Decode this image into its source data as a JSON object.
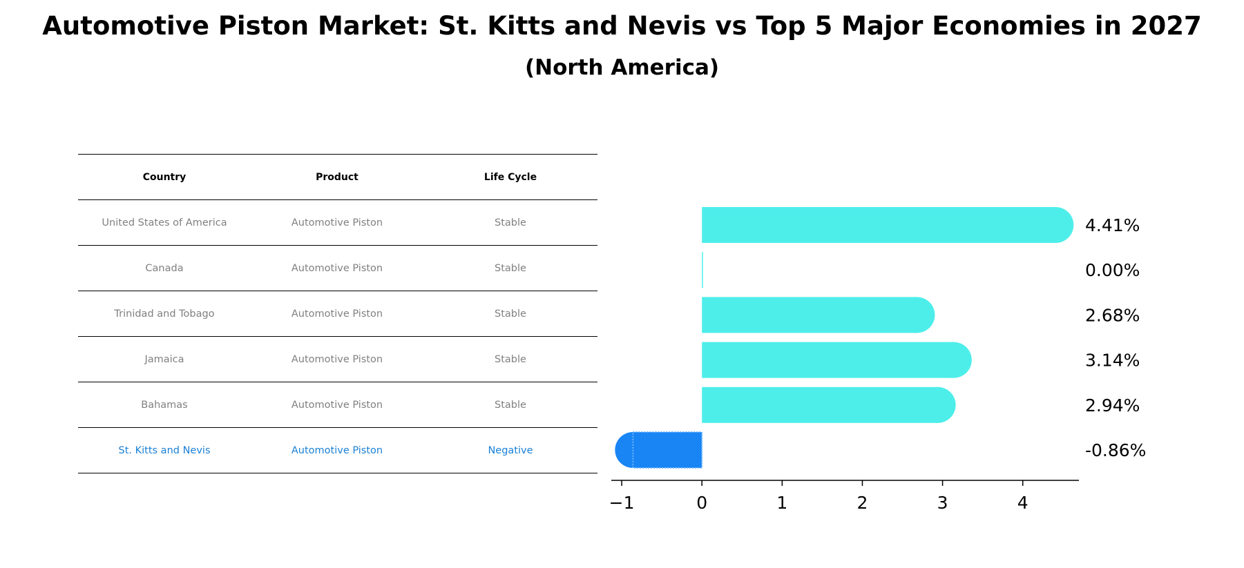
{
  "title": "Automotive Piston Market: St. Kitts and Nevis vs Top 5 Major Economies in 2027",
  "subtitle": "(North America)",
  "table": {
    "headers": [
      "Country",
      "Product",
      "Life Cycle"
    ],
    "rows": [
      {
        "country": "United States of America",
        "product": "Automotive Piston",
        "life_cycle": "Stable"
      },
      {
        "country": "Canada",
        "product": "Automotive Piston",
        "life_cycle": "Stable"
      },
      {
        "country": "Trinidad and Tobago",
        "product": "Automotive Piston",
        "life_cycle": "Stable"
      },
      {
        "country": "Jamaica",
        "product": "Automotive Piston",
        "life_cycle": "Stable"
      },
      {
        "country": "Bahamas",
        "product": "Automotive Piston",
        "life_cycle": "Stable"
      },
      {
        "country": "St. Kitts and Nevis",
        "product": "Automotive Piston",
        "life_cycle": "Negative"
      }
    ],
    "highlight_color": "#1a80d5",
    "text_color": "#808080"
  },
  "chart_data": {
    "type": "bar",
    "orientation": "horizontal",
    "categories": [
      "United States of America",
      "Canada",
      "Trinidad and Tobago",
      "Jamaica",
      "Bahamas",
      "St. Kitts and Nevis"
    ],
    "values": [
      4.41,
      0.0,
      2.68,
      3.14,
      2.94,
      -0.86
    ],
    "labels": [
      "4.41%",
      "0.00%",
      "2.68%",
      "3.14%",
      "2.94%",
      "-0.86%"
    ],
    "xlim": [
      -1.13,
      4.7
    ],
    "xticks": [
      -1,
      0,
      1,
      2,
      3,
      4
    ],
    "xtick_labels": [
      "−1",
      "0",
      "1",
      "2",
      "3",
      "4"
    ],
    "positive_color": "#4deeea",
    "negative_color": "#1985f5",
    "grid": false
  }
}
